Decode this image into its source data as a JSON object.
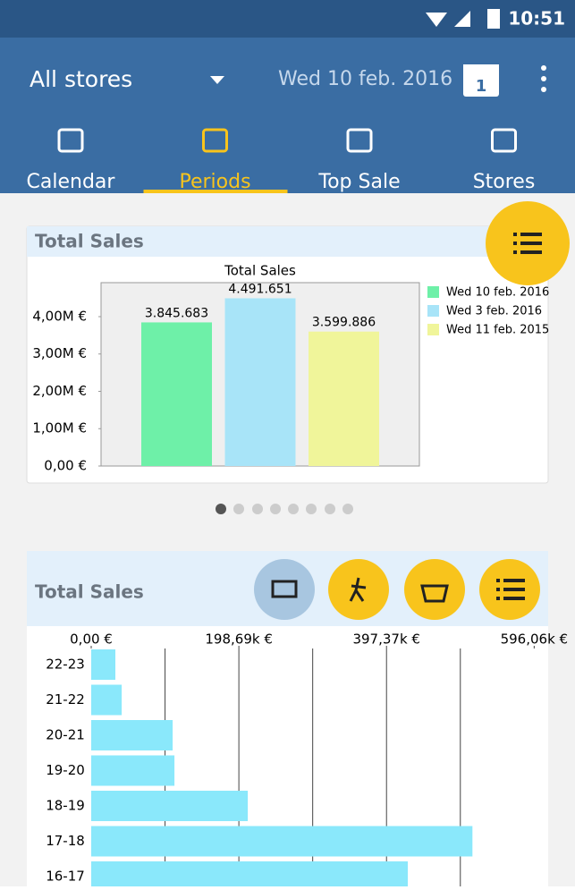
{
  "status_bar": {
    "time": "10:51"
  },
  "toolbar": {
    "store": "All stores",
    "date": "Wed 10 feb. 2016",
    "calendar_day": "1"
  },
  "tabs": [
    "Calendar",
    "Periods",
    "Top Sale",
    "Stores"
  ],
  "selected_tab": 1,
  "card1": {
    "header": "Total Sales",
    "chart": {
      "type": "bar",
      "title": "Total Sales",
      "series": [
        {
          "name": "Wed 10 feb. 2016",
          "color": "#6ef0a8",
          "values": [
            3845683
          ],
          "value_labels": [
            "3.845.683"
          ]
        },
        {
          "name": "Wed 3 feb. 2016",
          "color": "#a8e4f8",
          "values": [
            4491651
          ],
          "value_labels": [
            "4.491.651"
          ]
        },
        {
          "name": "Wed 11 feb. 2015",
          "color": "#f0f59a",
          "values": [
            3599886
          ],
          "value_labels": [
            "3.599.886"
          ]
        }
      ],
      "ylim": [
        0,
        4910000
      ],
      "yticks": [
        {
          "value": 0,
          "label": "0,00  €"
        },
        {
          "value": 1000000,
          "label": "1,00M €"
        },
        {
          "value": 2000000,
          "label": "2,00M €"
        },
        {
          "value": 3000000,
          "label": "3,00M €"
        },
        {
          "value": 4000000,
          "label": "4,00M €"
        }
      ],
      "legend": "right"
    }
  },
  "card2": {
    "header": "Total Sales",
    "chart": {
      "type": "hbar",
      "color": "#8ae8fb",
      "categories": [
        "22-23",
        "21-22",
        "20-21",
        "19-20",
        "18-19",
        "17-18",
        "16-17"
      ],
      "values": [
        32500,
        41000,
        109600,
        112000,
        210700,
        513000,
        426000
      ],
      "xlim": [
        0,
        651000
      ],
      "xticks": [
        {
          "value": 0,
          "label": "0,00  €"
        },
        {
          "value": 198690,
          "label": "198,69k €"
        },
        {
          "value": 397370,
          "label": "397,37k €"
        },
        {
          "value": 596060,
          "label": "596,06k €"
        }
      ],
      "xgrid": [
        99345,
        198690,
        298030,
        397370,
        496715
      ]
    }
  }
}
